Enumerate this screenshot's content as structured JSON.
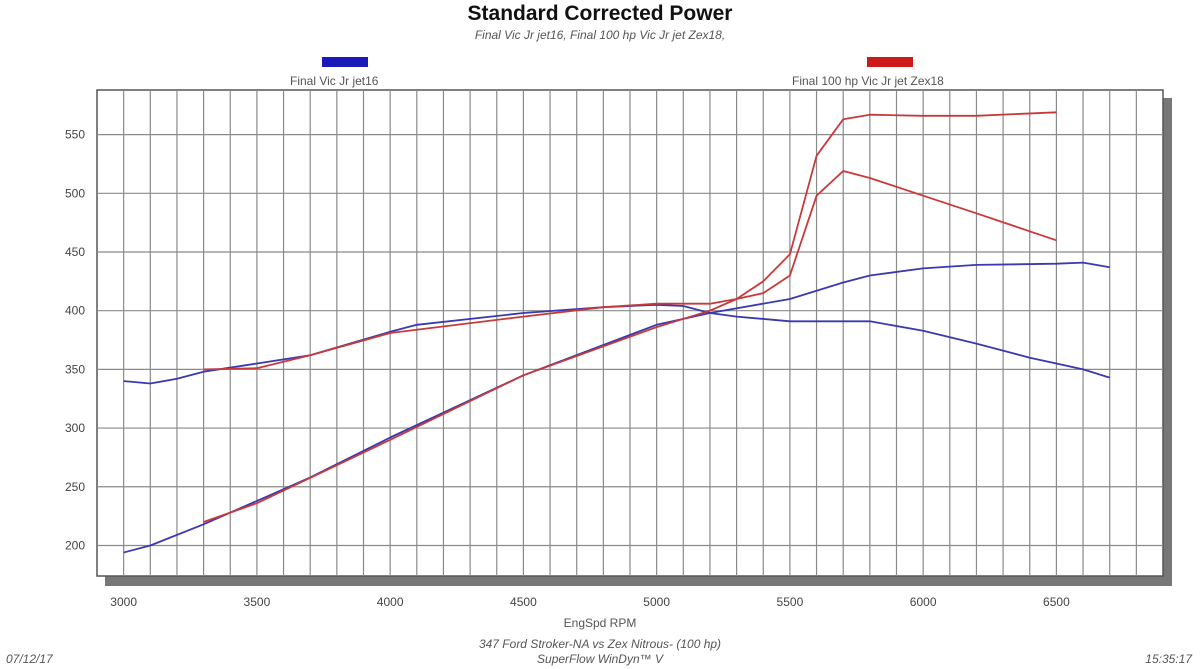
{
  "chart_data": {
    "type": "line",
    "title": "Standard Corrected Power",
    "subtitle": "Final Vic Jr jet16, Final 100 hp Vic Jr jet Zex18,",
    "xlabel": "EngSpd RPM",
    "ylabel": "",
    "xlim": [
      2900,
      6900
    ],
    "ylim": [
      174,
      588
    ],
    "xticks": [
      3000,
      3500,
      4000,
      4500,
      5000,
      5500,
      6000,
      6500
    ],
    "yticks": [
      200,
      250,
      300,
      350,
      400,
      450,
      500,
      550
    ],
    "grid": true,
    "legend": [
      {
        "name": "Final Vic Jr jet16",
        "color": "#1a1ab8"
      },
      {
        "name": "Final 100 hp Vic Jr jet Zex18",
        "color": "#cc1a1a"
      }
    ],
    "series": [
      {
        "name": "Final Vic Jr jet16 power",
        "color": "#3a3ab0",
        "x": [
          3000,
          3100,
          3300,
          3500,
          3700,
          4000,
          4500,
          5000,
          5200,
          5500,
          5700,
          5800,
          6000,
          6200,
          6500,
          6600,
          6700
        ],
        "y": [
          194,
          200,
          218,
          238,
          258,
          292,
          345,
          388,
          398,
          410,
          424,
          430,
          436,
          439,
          440,
          441,
          437
        ]
      },
      {
        "name": "Final Vic Jr jet16 torque",
        "color": "#3a3ab0",
        "x": [
          3000,
          3100,
          3200,
          3300,
          3500,
          3700,
          4000,
          4100,
          4500,
          4800,
          5000,
          5100,
          5200,
          5300,
          5500,
          5800,
          6000,
          6200,
          6400,
          6500,
          6600,
          6700
        ],
        "y": [
          340,
          338,
          342,
          348,
          355,
          362,
          382,
          388,
          398,
          403,
          405,
          404,
          398,
          395,
          391,
          391,
          383,
          372,
          360,
          355,
          350,
          343
        ]
      },
      {
        "name": "Final 100 hp Vic Jr jet Zex18 power",
        "color": "#c83a3a",
        "x": [
          3300,
          3500,
          4000,
          4500,
          5000,
          5200,
          5300,
          5400,
          5500,
          5600,
          5700,
          5800,
          6000,
          6200,
          6500
        ],
        "y": [
          220,
          236,
          290,
          345,
          386,
          400,
          410,
          425,
          448,
          532,
          563,
          567,
          566,
          566,
          569
        ]
      },
      {
        "name": "Final 100 hp Vic Jr jet Zex18 torque",
        "color": "#c83a3a",
        "x": [
          3300,
          3500,
          3700,
          4000,
          4500,
          4800,
          5000,
          5200,
          5300,
          5400,
          5500,
          5600,
          5700,
          5800,
          6000,
          6200,
          6500
        ],
        "y": [
          350,
          351,
          362,
          381,
          395,
          403,
          406,
          406,
          410,
          415,
          430,
          498,
          519,
          513,
          498,
          483,
          460
        ]
      }
    ]
  },
  "footer": {
    "date": "07/12/17",
    "time": "15:35:17",
    "line1": "347 Ford Stroker-NA vs Zex Nitrous- (100 hp)",
    "line2": "SuperFlow WinDyn™ V"
  }
}
